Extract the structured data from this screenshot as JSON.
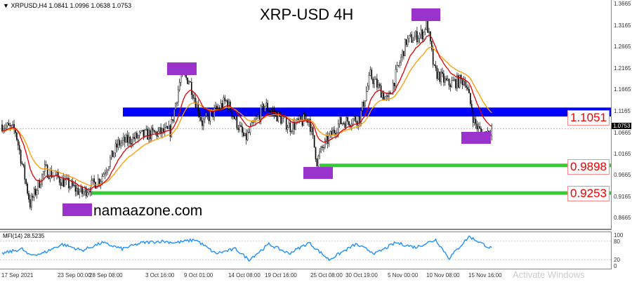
{
  "header": {
    "symbol": "XRPUSD,H4",
    "ohlc": "1.0841 1.0996 1.0638 1.0753"
  },
  "title": "XRP-USD 4H",
  "watermark": "namaazone.com",
  "indicator": {
    "label": "MFI(14) 28.5235",
    "levels": [
      "100",
      "80",
      "20",
      "0"
    ]
  },
  "activation": "Activate Windows",
  "colors": {
    "up": "#000000",
    "zone": "#0000ff",
    "support": "#33cc33",
    "marker": "#9933cc",
    "ma_fast": "#e00000",
    "ma_slow": "#ff9900",
    "mfi": "#1e90ff"
  },
  "chart_data": {
    "type": "candlestick",
    "title": "XRP-USD 4H",
    "ylim": [
      0.8665,
      1.3665
    ],
    "y_ticks": [
      "1.3665",
      "1.3165",
      "1.2665",
      "1.2165",
      "1.1665",
      "1.1165",
      "1.0665",
      "1.0165",
      "0.9665",
      "0.9165",
      "0.8665"
    ],
    "x_ticks": [
      "17 Sep 2021",
      "23 Sep 00:00",
      "28 Sep 08:00",
      "3 Oct 16:00",
      "9 Oct 01:00",
      "14 Oct 08:00",
      "19 Oct 16:00",
      "25 Oct 08:00",
      "30 Oct 19:00",
      "5 Nov 00:00",
      "10 Nov 08:00",
      "15 Nov 16:00"
    ],
    "current_price": "1.0753",
    "resistance_zone": [
      1.104,
      1.125
    ],
    "levels": [
      {
        "label": "1.1051",
        "value": 1.1051
      },
      {
        "label": "0.9898",
        "value": 0.9898
      },
      {
        "label": "0.9253",
        "value": 0.9253
      }
    ],
    "close_path": [
      [
        0,
        1.085
      ],
      [
        10,
        1.07
      ],
      [
        21,
        0.9
      ],
      [
        32,
        0.98
      ],
      [
        47,
        0.95
      ],
      [
        60,
        0.925
      ],
      [
        74,
        0.96
      ],
      [
        87,
        1.04
      ],
      [
        105,
        1.06
      ],
      [
        126,
        1.07
      ],
      [
        134,
        1.2
      ],
      [
        140,
        1.19
      ],
      [
        150,
        1.09
      ],
      [
        168,
        1.14
      ],
      [
        182,
        1.05
      ],
      [
        197,
        1.13
      ],
      [
        216,
        1.08
      ],
      [
        230,
        1.1
      ],
      [
        236,
        1.0
      ],
      [
        240,
        1.03
      ],
      [
        253,
        1.09
      ],
      [
        268,
        1.1
      ],
      [
        276,
        1.2
      ],
      [
        289,
        1.14
      ],
      [
        303,
        1.28
      ],
      [
        316,
        1.3
      ],
      [
        318,
        1.33
      ],
      [
        324,
        1.21
      ],
      [
        334,
        1.18
      ],
      [
        347,
        1.19
      ],
      [
        354,
        1.09
      ],
      [
        360,
        1.06
      ],
      [
        367,
        1.075
      ]
    ],
    "mfi_path": [
      [
        0,
        40
      ],
      [
        15,
        55
      ],
      [
        20,
        35
      ],
      [
        30,
        40
      ],
      [
        45,
        70
      ],
      [
        60,
        50
      ],
      [
        75,
        75
      ],
      [
        90,
        55
      ],
      [
        105,
        75
      ],
      [
        120,
        80
      ],
      [
        130,
        75
      ],
      [
        145,
        85
      ],
      [
        160,
        40
      ],
      [
        175,
        55
      ],
      [
        185,
        20
      ],
      [
        200,
        70
      ],
      [
        215,
        40
      ],
      [
        230,
        75
      ],
      [
        245,
        20
      ],
      [
        265,
        70
      ],
      [
        280,
        40
      ],
      [
        295,
        75
      ],
      [
        310,
        60
      ],
      [
        325,
        85
      ],
      [
        335,
        25
      ],
      [
        350,
        95
      ],
      [
        365,
        60
      ],
      [
        380,
        40
      ],
      [
        395,
        25
      ],
      [
        405,
        70
      ],
      [
        415,
        15
      ],
      [
        425,
        20
      ],
      [
        432,
        28
      ]
    ]
  }
}
